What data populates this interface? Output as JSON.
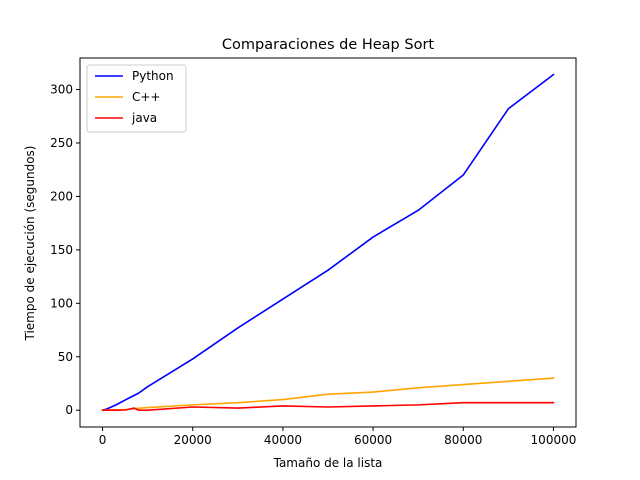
{
  "chart_data": {
    "type": "line",
    "title": "Comparaciones de Heap Sort",
    "xlabel": "Tamaño de la lista",
    "ylabel": "Tiempo de ejecución (segundos)",
    "xlim": [
      -5000,
      105000
    ],
    "ylim": [
      -15.7,
      329.5
    ],
    "xticks": [
      0,
      20000,
      40000,
      60000,
      80000,
      100000
    ],
    "yticks": [
      0,
      50,
      100,
      150,
      200,
      250,
      300
    ],
    "grid": false,
    "legend_position": "top-left",
    "series": [
      {
        "name": "Python",
        "color": "#0000ff",
        "x": [
          0,
          1000,
          3000,
          5000,
          8000,
          10000,
          20000,
          30000,
          40000,
          50000,
          60000,
          70000,
          80000,
          90000,
          100000
        ],
        "y": [
          0,
          1.3,
          5,
          9.5,
          16,
          22,
          48,
          77,
          104,
          131,
          162,
          187,
          220,
          282,
          314
        ]
      },
      {
        "name": "C++",
        "color": "#ffa500",
        "x": [
          0,
          1000,
          3000,
          5000,
          7000,
          8000,
          10000,
          20000,
          30000,
          40000,
          50000,
          60000,
          70000,
          80000,
          90000,
          100000
        ],
        "y": [
          0,
          0.1,
          0.3,
          0.6,
          1.5,
          1.8,
          2.5,
          5,
          7,
          10,
          15,
          17,
          21,
          24,
          27,
          30
        ]
      },
      {
        "name": "java",
        "color": "#ff0000",
        "x": [
          0,
          1000,
          3000,
          5000,
          6000,
          7000,
          8000,
          10000,
          20000,
          30000,
          40000,
          50000,
          60000,
          70000,
          80000,
          90000,
          100000
        ],
        "y": [
          0,
          0,
          0,
          0.2,
          1,
          2,
          0,
          0,
          3,
          2,
          4,
          3,
          4,
          5,
          7,
          7,
          7
        ]
      }
    ]
  }
}
